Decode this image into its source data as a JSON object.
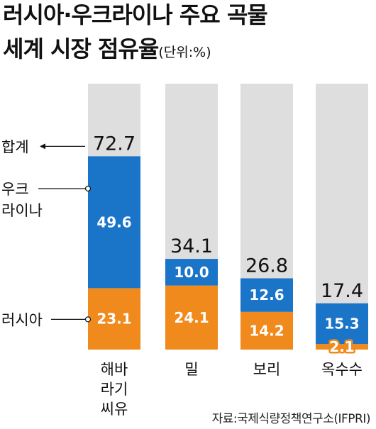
{
  "title": {
    "line1": "러시아·우크라이나 주요 곡물",
    "line2": "세계 시장 점유율",
    "unit": "(단위:%)"
  },
  "source": "자료:국제식량정책연구소(IFPRI)",
  "colors": {
    "russia": "#f08a1c",
    "ukraine": "#1a74c8",
    "track": "#dedede"
  },
  "annotations": {
    "total": "합계",
    "ukraine": "우크\n라이나",
    "russia": "러시아"
  },
  "chart_data": {
    "type": "bar",
    "stacked": true,
    "title": "러시아·우크라이나 주요 곡물 세계 시장 점유율",
    "unit": "%",
    "categories": [
      "해바\n라기\n씨유",
      "밀",
      "보리",
      "옥수수"
    ],
    "series": [
      {
        "name": "러시아",
        "values": [
          23.1,
          24.1,
          14.2,
          2.1
        ]
      },
      {
        "name": "우크라이나",
        "values": [
          49.6,
          10.0,
          12.6,
          15.3
        ]
      }
    ],
    "totals": [
      72.7,
      34.1,
      26.8,
      17.4
    ],
    "ylim": [
      0,
      100
    ],
    "grid": false,
    "legend": "left"
  }
}
